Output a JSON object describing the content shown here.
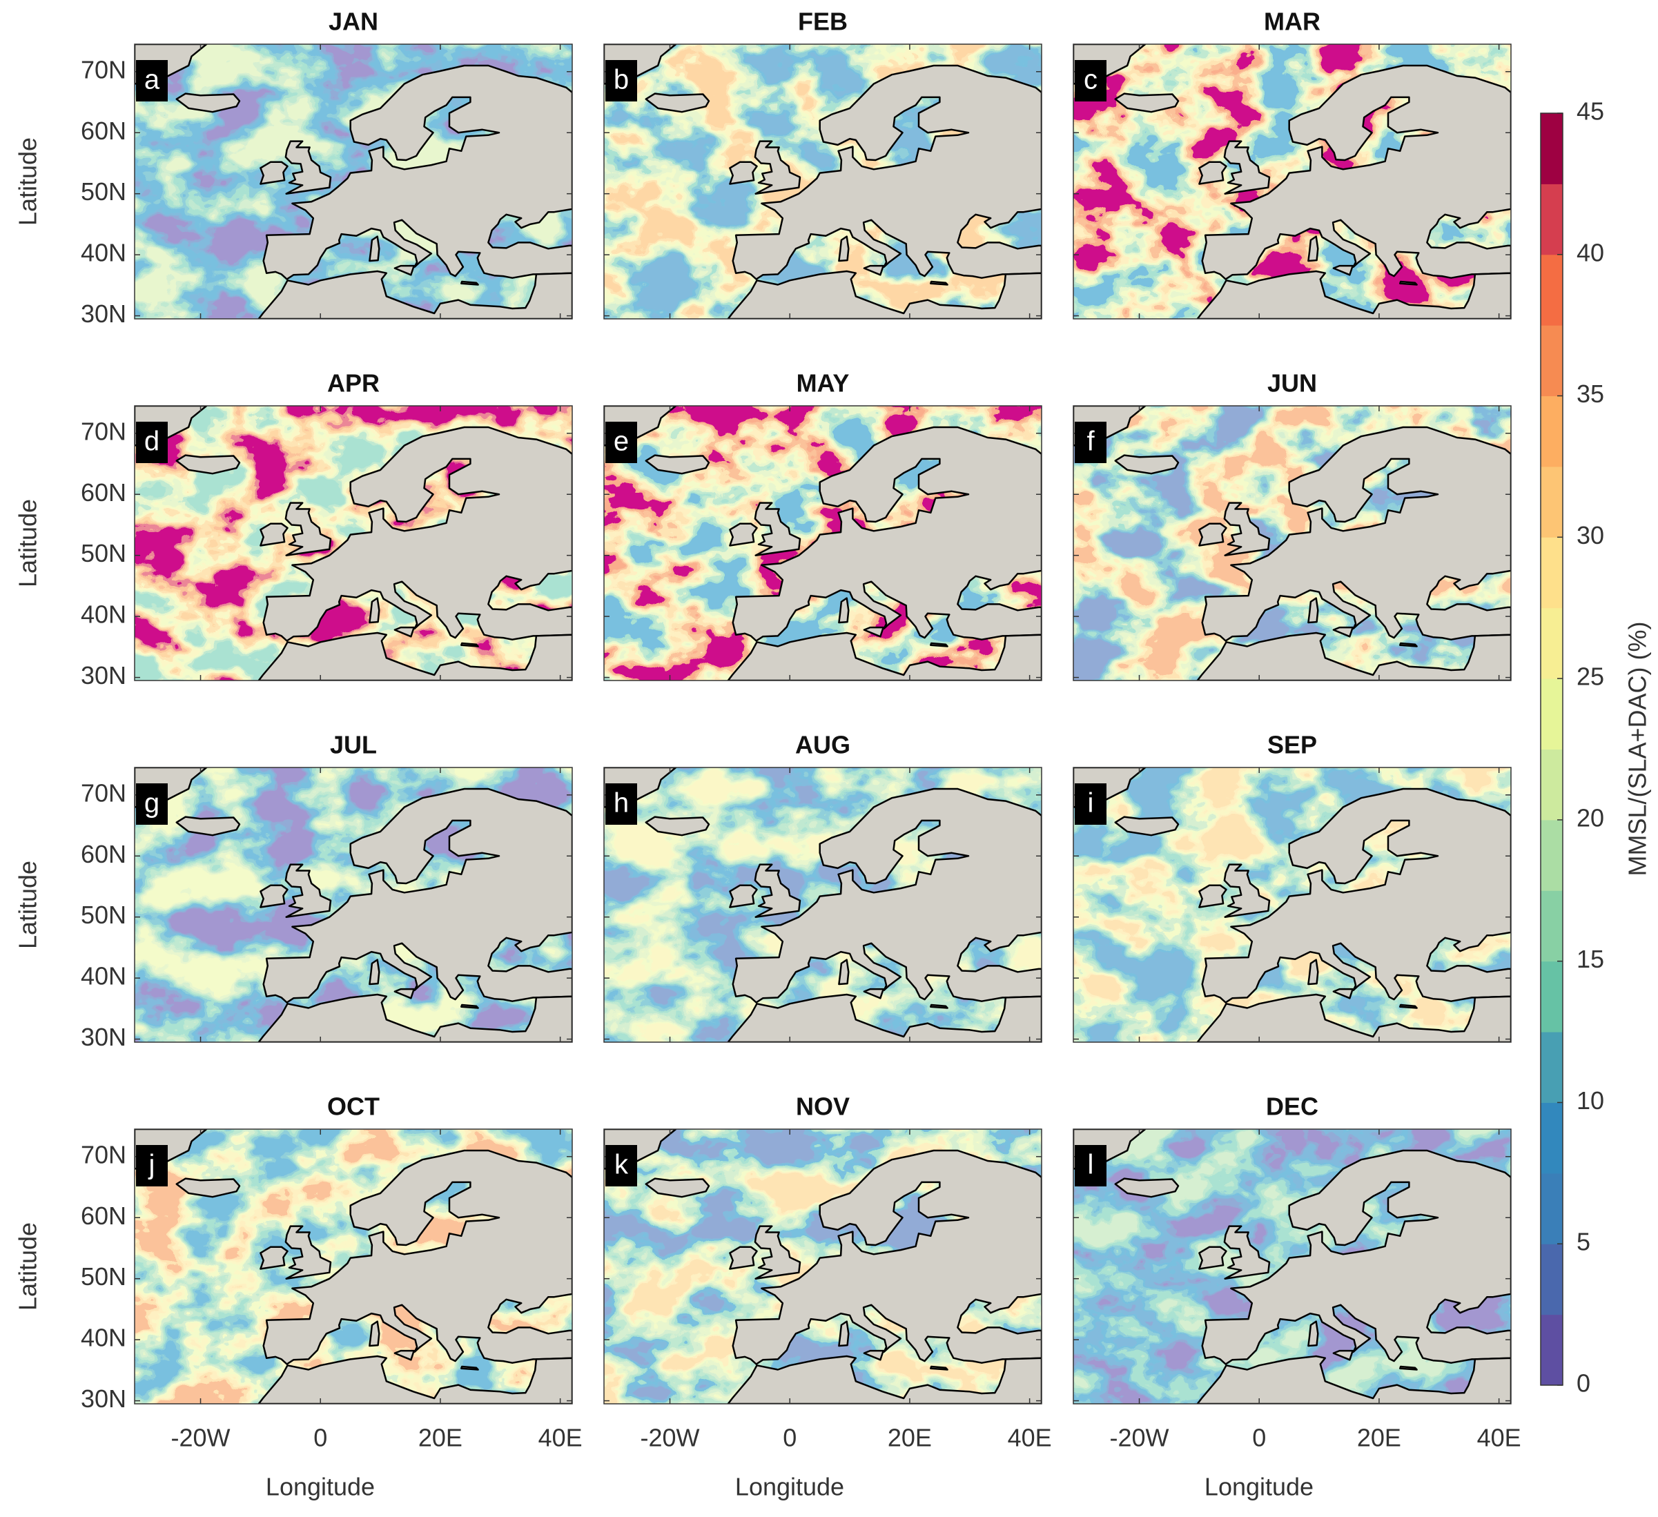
{
  "figure": {
    "panels": [
      {
        "title": "JAN",
        "letter": "a"
      },
      {
        "title": "FEB",
        "letter": "b"
      },
      {
        "title": "MAR",
        "letter": "c"
      },
      {
        "title": "APR",
        "letter": "d"
      },
      {
        "title": "MAY",
        "letter": "e"
      },
      {
        "title": "JUN",
        "letter": "f"
      },
      {
        "title": "JUL",
        "letter": "g"
      },
      {
        "title": "AUG",
        "letter": "h"
      },
      {
        "title": "SEP",
        "letter": "i"
      },
      {
        "title": "OCT",
        "letter": "j"
      },
      {
        "title": "NOV",
        "letter": "k"
      },
      {
        "title": "DEC",
        "letter": "l"
      }
    ],
    "y_axis_label": "Latitude",
    "x_axis_label": "Longitude",
    "xlim": [
      -31,
      42
    ],
    "xticks": [
      {
        "value": -20,
        "label": "-20W"
      },
      0,
      {
        "value": 20,
        "label": "20E"
      },
      {
        "value": 40,
        "label": "40E"
      }
    ],
    "ylim": [
      29.5,
      74.5
    ],
    "yticks": [
      {
        "value": 30,
        "label": "30N"
      },
      {
        "value": 40,
        "label": "40N"
      },
      {
        "value": 50,
        "label": "50N"
      },
      {
        "value": 60,
        "label": "60N"
      },
      {
        "value": 70,
        "label": "70N"
      }
    ],
    "land_color": "#d3d0c8",
    "colorbar": {
      "label": "MMSL/(SLA+DAC) (%)",
      "lim": [
        0,
        45
      ],
      "ticks": [
        0,
        5,
        10,
        15,
        20,
        25,
        30,
        35,
        40,
        45
      ],
      "colors": [
        "#5e4fa2",
        "#4a68ad",
        "#3a7fb8",
        "#3288bd",
        "#489fb3",
        "#66c2a5",
        "#88d0a4",
        "#abdda4",
        "#cdea9e",
        "#e6f598",
        "#f7ee93",
        "#fee08b",
        "#fdc574",
        "#fdae61",
        "#f68b52",
        "#f46d43",
        "#d53e4f",
        "#9e0142"
      ]
    }
  }
}
